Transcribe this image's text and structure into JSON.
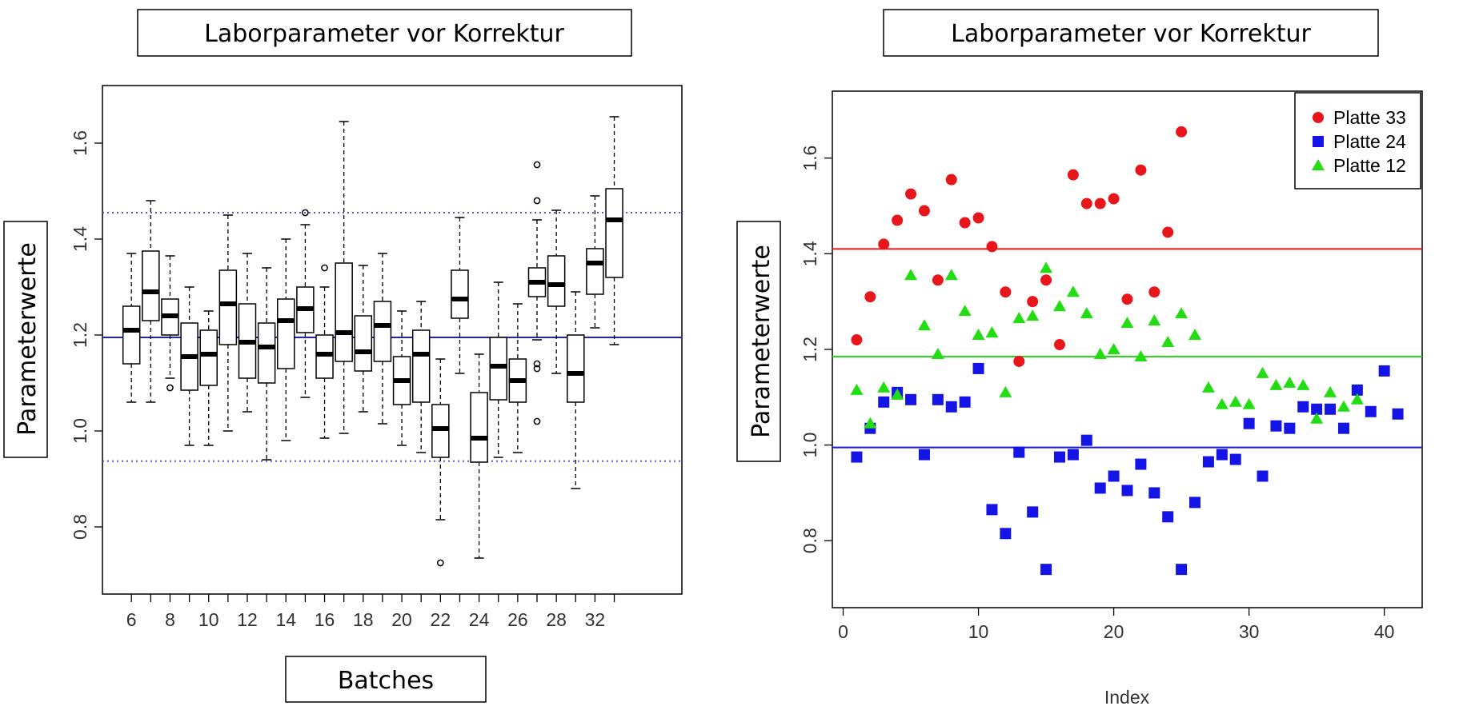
{
  "chart_data": [
    {
      "type": "boxplot",
      "title": "Laborparameter vor Korrektur",
      "xlabel": "Batches",
      "ylabel": "Parameterwerte",
      "ylim": [
        0.66,
        1.72
      ],
      "xlim": [
        4.5,
        34.5
      ],
      "yticks": [
        0.8,
        1.0,
        1.2,
        1.4,
        1.6
      ],
      "xticks": [
        "6",
        "8",
        "10",
        "12",
        "14",
        "16",
        "18",
        "20",
        "22",
        "24",
        "26",
        "28",
        "32"
      ],
      "overall_line": {
        "value": 1.195,
        "color": "#1f1fd6"
      },
      "limit_lines": {
        "values": [
          0.937,
          1.455
        ],
        "color": "#5555dd"
      },
      "boxes": [
        {
          "pos": 6,
          "q1": 1.14,
          "median": 1.21,
          "q3": 1.26,
          "lo": 1.06,
          "hi": 1.37,
          "outliers": []
        },
        {
          "pos": 7,
          "q1": 1.23,
          "median": 1.29,
          "q3": 1.375,
          "lo": 1.06,
          "hi": 1.48,
          "outliers": []
        },
        {
          "pos": 8,
          "q1": 1.2,
          "median": 1.24,
          "q3": 1.275,
          "lo": 1.11,
          "hi": 1.365,
          "outliers": [
            1.09
          ]
        },
        {
          "pos": 9,
          "q1": 1.085,
          "median": 1.155,
          "q3": 1.225,
          "lo": 0.97,
          "hi": 1.3,
          "outliers": []
        },
        {
          "pos": 10,
          "q1": 1.095,
          "median": 1.16,
          "q3": 1.21,
          "lo": 0.97,
          "hi": 1.25,
          "outliers": []
        },
        {
          "pos": 11,
          "q1": 1.18,
          "median": 1.265,
          "q3": 1.335,
          "lo": 1.0,
          "hi": 1.45,
          "outliers": []
        },
        {
          "pos": 12,
          "q1": 1.11,
          "median": 1.185,
          "q3": 1.265,
          "lo": 1.04,
          "hi": 1.37,
          "outliers": []
        },
        {
          "pos": 13,
          "q1": 1.1,
          "median": 1.175,
          "q3": 1.225,
          "lo": 0.94,
          "hi": 1.34,
          "outliers": []
        },
        {
          "pos": 14,
          "q1": 1.13,
          "median": 1.23,
          "q3": 1.275,
          "lo": 0.98,
          "hi": 1.4,
          "outliers": []
        },
        {
          "pos": 15,
          "q1": 1.205,
          "median": 1.255,
          "q3": 1.3,
          "lo": 1.07,
          "hi": 1.43,
          "outliers": [
            1.455
          ]
        },
        {
          "pos": 16,
          "q1": 1.11,
          "median": 1.16,
          "q3": 1.2,
          "lo": 0.985,
          "hi": 1.3,
          "outliers": [
            1.34
          ]
        },
        {
          "pos": 17,
          "q1": 1.145,
          "median": 1.205,
          "q3": 1.35,
          "lo": 0.995,
          "hi": 1.645,
          "outliers": []
        },
        {
          "pos": 18,
          "q1": 1.125,
          "median": 1.165,
          "q3": 1.24,
          "lo": 1.04,
          "hi": 1.345,
          "outliers": []
        },
        {
          "pos": 19,
          "q1": 1.145,
          "median": 1.22,
          "q3": 1.27,
          "lo": 1.015,
          "hi": 1.37,
          "outliers": []
        },
        {
          "pos": 20,
          "q1": 1.055,
          "median": 1.105,
          "q3": 1.155,
          "lo": 0.97,
          "hi": 1.25,
          "outliers": []
        },
        {
          "pos": 21,
          "q1": 1.06,
          "median": 1.16,
          "q3": 1.21,
          "lo": 0.955,
          "hi": 1.27,
          "outliers": []
        },
        {
          "pos": 22,
          "q1": 0.945,
          "median": 1.005,
          "q3": 1.055,
          "lo": 0.815,
          "hi": 1.15,
          "outliers": [
            0.725
          ]
        },
        {
          "pos": 23,
          "q1": 1.235,
          "median": 1.275,
          "q3": 1.335,
          "lo": 1.12,
          "hi": 1.445,
          "outliers": []
        },
        {
          "pos": 24,
          "q1": 0.935,
          "median": 0.985,
          "q3": 1.08,
          "lo": 0.735,
          "hi": 1.16,
          "outliers": []
        },
        {
          "pos": 25,
          "q1": 1.065,
          "median": 1.135,
          "q3": 1.195,
          "lo": 0.945,
          "hi": 1.31,
          "outliers": []
        },
        {
          "pos": 26,
          "q1": 1.06,
          "median": 1.105,
          "q3": 1.15,
          "lo": 0.955,
          "hi": 1.265,
          "outliers": []
        },
        {
          "pos": 27,
          "q1": 1.28,
          "median": 1.31,
          "q3": 1.34,
          "lo": 1.19,
          "hi": 1.44,
          "outliers": [
            1.555,
            1.48,
            1.14,
            1.13,
            1.02
          ]
        },
        {
          "pos": 28,
          "q1": 1.26,
          "median": 1.305,
          "q3": 1.365,
          "lo": 1.12,
          "hi": 1.46,
          "outliers": []
        },
        {
          "pos": 29,
          "q1": 1.06,
          "median": 1.12,
          "q3": 1.2,
          "lo": 0.88,
          "hi": 1.29,
          "outliers": []
        },
        {
          "pos": 30,
          "q1": 1.285,
          "median": 1.35,
          "q3": 1.38,
          "lo": 1.215,
          "hi": 1.49,
          "outliers": []
        },
        {
          "pos": 31,
          "q1": 1.32,
          "median": 1.44,
          "q3": 1.505,
          "lo": 1.18,
          "hi": 1.655,
          "outliers": []
        }
      ]
    },
    {
      "type": "scatter",
      "title": "Laborparameter vor Korrektur",
      "xlabel": "Index",
      "ylabel": "Parameterwerte",
      "xlim": [
        -0.8,
        42.8
      ],
      "ylim": [
        0.66,
        1.74
      ],
      "xticks": [
        0,
        10,
        20,
        30,
        40
      ],
      "yticks": [
        0.8,
        1.0,
        1.2,
        1.4,
        1.6
      ],
      "legend_position": "top-right",
      "series": [
        {
          "name": "Platte 33",
          "color": "#e8161b",
          "marker": "circle",
          "hline": 1.41,
          "x": [
            1,
            2,
            3,
            4,
            5,
            6,
            7,
            8,
            9,
            10,
            11,
            12,
            13,
            14,
            15,
            16,
            17,
            18,
            19,
            20,
            21,
            22,
            23,
            24,
            25
          ],
          "y": [
            1.22,
            1.31,
            1.42,
            1.47,
            1.525,
            1.49,
            1.345,
            1.555,
            1.465,
            1.475,
            1.415,
            1.32,
            1.175,
            1.3,
            1.345,
            1.21,
            1.565,
            1.505,
            1.505,
            1.515,
            1.305,
            1.575,
            1.32,
            1.445,
            1.655
          ]
        },
        {
          "name": "Platte 24",
          "color": "#1414e6",
          "marker": "square",
          "hline": 0.995,
          "x": [
            1,
            2,
            3,
            4,
            5,
            6,
            7,
            8,
            9,
            10,
            11,
            12,
            13,
            14,
            15,
            16,
            17,
            18,
            19,
            20,
            21,
            22,
            23,
            24,
            25,
            26,
            27,
            28,
            29,
            30,
            31,
            32,
            33,
            34,
            35,
            36,
            37,
            38,
            39,
            40,
            41
          ],
          "y": [
            0.975,
            1.035,
            1.09,
            1.11,
            1.095,
            0.98,
            1.095,
            1.08,
            1.09,
            1.16,
            0.865,
            0.815,
            0.985,
            0.86,
            0.74,
            0.975,
            0.98,
            1.01,
            0.91,
            0.935,
            0.905,
            0.96,
            0.9,
            0.85,
            0.74,
            0.88,
            0.965,
            0.98,
            0.97,
            1.045,
            0.935,
            1.04,
            1.035,
            1.08,
            1.075,
            1.075,
            1.035,
            1.115,
            1.07,
            1.155,
            1.065
          ]
        },
        {
          "name": "Platte 12",
          "color": "#22dd11",
          "marker": "triangle",
          "hline": 1.185,
          "x": [
            1,
            2,
            3,
            4,
            5,
            6,
            7,
            8,
            9,
            10,
            11,
            12,
            13,
            14,
            15,
            16,
            17,
            18,
            19,
            20,
            21,
            22,
            23,
            24,
            25,
            26,
            27,
            28,
            29,
            30,
            31,
            32,
            33,
            34,
            35,
            36,
            37,
            38
          ],
          "y": [
            1.115,
            1.045,
            1.12,
            1.105,
            1.355,
            1.25,
            1.19,
            1.355,
            1.28,
            1.23,
            1.235,
            1.11,
            1.265,
            1.27,
            1.37,
            1.29,
            1.32,
            1.275,
            1.19,
            1.2,
            1.255,
            1.185,
            1.26,
            1.215,
            1.275,
            1.23,
            1.12,
            1.085,
            1.09,
            1.085,
            1.15,
            1.125,
            1.13,
            1.125,
            1.055,
            1.11,
            1.08,
            1.095
          ]
        }
      ]
    }
  ]
}
